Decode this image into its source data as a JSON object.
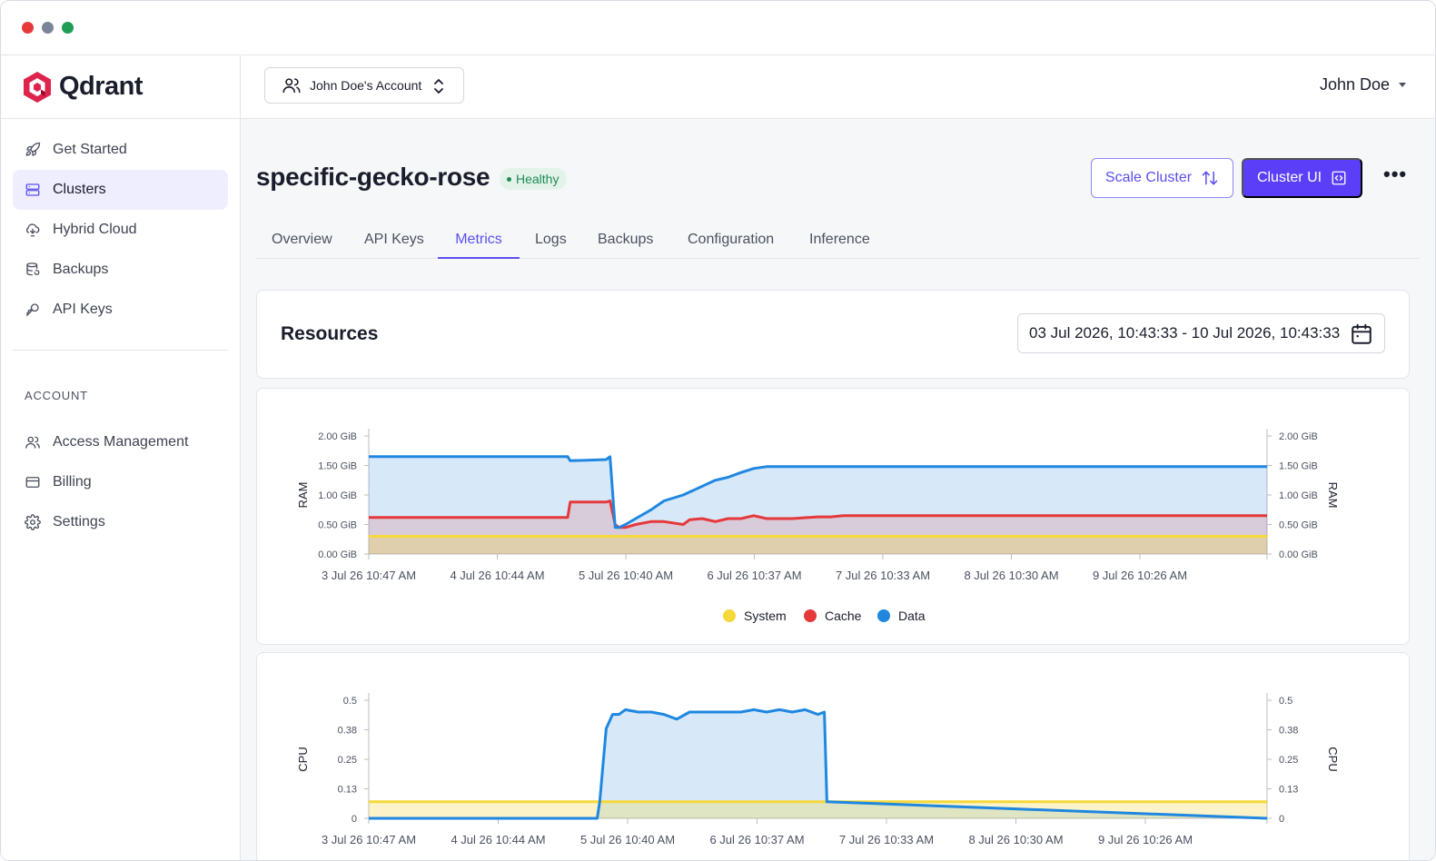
{
  "brand": {
    "name": "Qdrant",
    "color": "#dc244c"
  },
  "sidebar": {
    "items": [
      {
        "label": "Get Started",
        "icon": "rocket-icon"
      },
      {
        "label": "Clusters",
        "icon": "server-icon",
        "active": true
      },
      {
        "label": "Hybrid Cloud",
        "icon": "cloud-sync-icon"
      },
      {
        "label": "Backups",
        "icon": "database-restore-icon"
      },
      {
        "label": "API Keys",
        "icon": "key-icon"
      }
    ],
    "account_label": "ACCOUNT",
    "account_items": [
      {
        "label": "Access Management",
        "icon": "users-icon"
      },
      {
        "label": "Billing",
        "icon": "credit-card-icon"
      },
      {
        "label": "Settings",
        "icon": "gear-icon"
      }
    ]
  },
  "header": {
    "account_selector": "John Doe's Account",
    "user_name": "John Doe"
  },
  "cluster": {
    "name": "specific-gecko-rose",
    "status": "Healthy",
    "scale_button": "Scale Cluster",
    "cluster_ui_button": "Cluster UI",
    "accent": "#5b3ff8"
  },
  "tabs": [
    {
      "label": "Overview"
    },
    {
      "label": "API Keys"
    },
    {
      "label": "Metrics",
      "active": true
    },
    {
      "label": "Logs"
    },
    {
      "label": "Backups"
    },
    {
      "label": "Configuration"
    },
    {
      "label": "Inference"
    }
  ],
  "resources": {
    "title": "Resources",
    "date_range": "03 Jul 2026, 10:43:33 - 10 Jul 2026, 10:43:33"
  },
  "chart_data": [
    {
      "type": "area",
      "ylabel": "RAM",
      "ylabel_right": "RAM",
      "y_ticks": [
        "0.00 GiB",
        "0.50 GiB",
        "1.00 GiB",
        "1.50 GiB",
        "2.00 GiB"
      ],
      "ylim": [
        0,
        2
      ],
      "x_ticks": [
        "3 Jul 26 10:47 AM",
        "4 Jul 26 10:44 AM",
        "5 Jul 26 10:40 AM",
        "6 Jul 26 10:37 AM",
        "7 Jul 26 10:33 AM",
        "8 Jul 26 10:30 AM",
        "9 Jul 26 10:26 AM"
      ],
      "x": [
        0,
        1.55,
        1.57,
        1.85,
        1.88,
        1.92,
        1.95,
        2.0,
        2.08,
        2.2,
        2.3,
        2.45,
        2.5,
        2.6,
        2.7,
        2.8,
        2.9,
        3.0,
        3.1,
        3.3,
        3.5,
        3.6,
        3.7,
        7.0
      ],
      "legend": [
        "System",
        "Cache",
        "Data"
      ],
      "legend_position": "bottom",
      "series": [
        {
          "name": "System",
          "color": "#f5d83a",
          "values": [
            0.3,
            0.3,
            0.3,
            0.3,
            0.3,
            0.3,
            0.3,
            0.3,
            0.3,
            0.3,
            0.3,
            0.3,
            0.3,
            0.3,
            0.3,
            0.3,
            0.3,
            0.3,
            0.3,
            0.3,
            0.3,
            0.3,
            0.3,
            0.3
          ]
        },
        {
          "name": "Cache",
          "color": "#e5383b",
          "values": [
            0.62,
            0.62,
            0.88,
            0.88,
            0.9,
            0.5,
            0.45,
            0.45,
            0.5,
            0.55,
            0.55,
            0.5,
            0.58,
            0.6,
            0.55,
            0.6,
            0.6,
            0.65,
            0.6,
            0.6,
            0.63,
            0.63,
            0.65,
            0.65
          ]
        },
        {
          "name": "Data",
          "color": "#1f87e0",
          "values": [
            1.65,
            1.65,
            1.58,
            1.6,
            1.65,
            0.45,
            0.45,
            0.5,
            0.6,
            0.75,
            0.9,
            1.0,
            1.05,
            1.15,
            1.25,
            1.3,
            1.38,
            1.45,
            1.48,
            1.48,
            1.48,
            1.48,
            1.48,
            1.48
          ]
        }
      ]
    },
    {
      "type": "area",
      "ylabel": "CPU",
      "ylabel_right": "CPU",
      "y_ticks": [
        "0",
        "0.13",
        "0.25",
        "0.38",
        "0.5"
      ],
      "ylim": [
        0,
        0.5
      ],
      "x_ticks": [
        "3 Jul 26 10:47 AM",
        "4 Jul 26 10:44 AM",
        "5 Jul 26 10:40 AM",
        "6 Jul 26 10:37 AM",
        "7 Jul 26 10:33 AM",
        "8 Jul 26 10:30 AM",
        "9 Jul 26 10:26 AM"
      ],
      "x": [
        0,
        1.78,
        1.8,
        1.85,
        1.9,
        1.95,
        2.0,
        2.1,
        2.2,
        2.3,
        2.4,
        2.5,
        2.6,
        2.7,
        2.8,
        2.9,
        3.0,
        3.1,
        3.2,
        3.3,
        3.4,
        3.5,
        3.55,
        3.57,
        7.0
      ],
      "series": [
        {
          "name": "System",
          "color": "#f5d83a",
          "values": [
            0.07,
            0.07,
            0.07,
            0.07,
            0.07,
            0.07,
            0.07,
            0.07,
            0.07,
            0.07,
            0.07,
            0.07,
            0.07,
            0.07,
            0.07,
            0.07,
            0.07,
            0.07,
            0.07,
            0.07,
            0.07,
            0.07,
            0.07,
            0.07,
            0.07
          ]
        },
        {
          "name": "Data",
          "color": "#1f87e0",
          "values": [
            0,
            0,
            0.07,
            0.38,
            0.44,
            0.44,
            0.46,
            0.45,
            0.45,
            0.44,
            0.42,
            0.45,
            0.45,
            0.45,
            0.45,
            0.45,
            0.46,
            0.45,
            0.46,
            0.45,
            0.46,
            0.44,
            0.45,
            0.07,
            0
          ]
        }
      ]
    }
  ]
}
